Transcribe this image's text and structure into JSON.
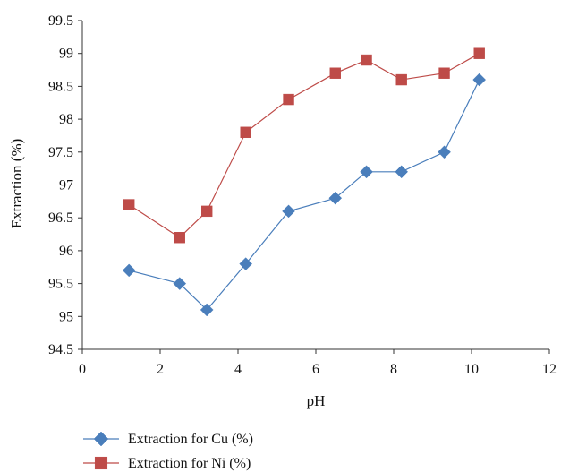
{
  "chart_data": {
    "type": "line",
    "title": "",
    "xlabel": "pH",
    "ylabel": "Extraction (%)",
    "xlim": [
      0,
      12
    ],
    "ylim": [
      94.5,
      99.5
    ],
    "x_ticks": [
      "0",
      "2",
      "4",
      "6",
      "8",
      "10",
      "12"
    ],
    "y_ticks": [
      "94.5",
      "95",
      "95.5",
      "96",
      "96.5",
      "97",
      "97.5",
      "98",
      "98.5",
      "99",
      "99.5"
    ],
    "grid": false,
    "legend_position": "bottom-left",
    "series": [
      {
        "name": "Extraction for Cu (%)",
        "marker": "diamond",
        "color": "#4a7ebb",
        "points": [
          {
            "x": 1.2,
            "y": 95.7
          },
          {
            "x": 2.5,
            "y": 95.5
          },
          {
            "x": 3.2,
            "y": 95.1
          },
          {
            "x": 4.2,
            "y": 95.8
          },
          {
            "x": 5.3,
            "y": 96.6
          },
          {
            "x": 6.5,
            "y": 96.8
          },
          {
            "x": 7.3,
            "y": 97.2
          },
          {
            "x": 8.2,
            "y": 97.2
          },
          {
            "x": 9.3,
            "y": 97.5
          },
          {
            "x": 10.2,
            "y": 98.6
          }
        ]
      },
      {
        "name": "Extraction for Ni (%)",
        "marker": "square",
        "color": "#be4b48",
        "points": [
          {
            "x": 1.2,
            "y": 96.7
          },
          {
            "x": 2.5,
            "y": 96.2
          },
          {
            "x": 3.2,
            "y": 96.6
          },
          {
            "x": 4.2,
            "y": 97.8
          },
          {
            "x": 5.3,
            "y": 98.3
          },
          {
            "x": 6.5,
            "y": 98.7
          },
          {
            "x": 7.3,
            "y": 98.9
          },
          {
            "x": 8.2,
            "y": 98.6
          },
          {
            "x": 9.3,
            "y": 98.7
          },
          {
            "x": 10.2,
            "y": 99.0
          }
        ]
      }
    ]
  }
}
